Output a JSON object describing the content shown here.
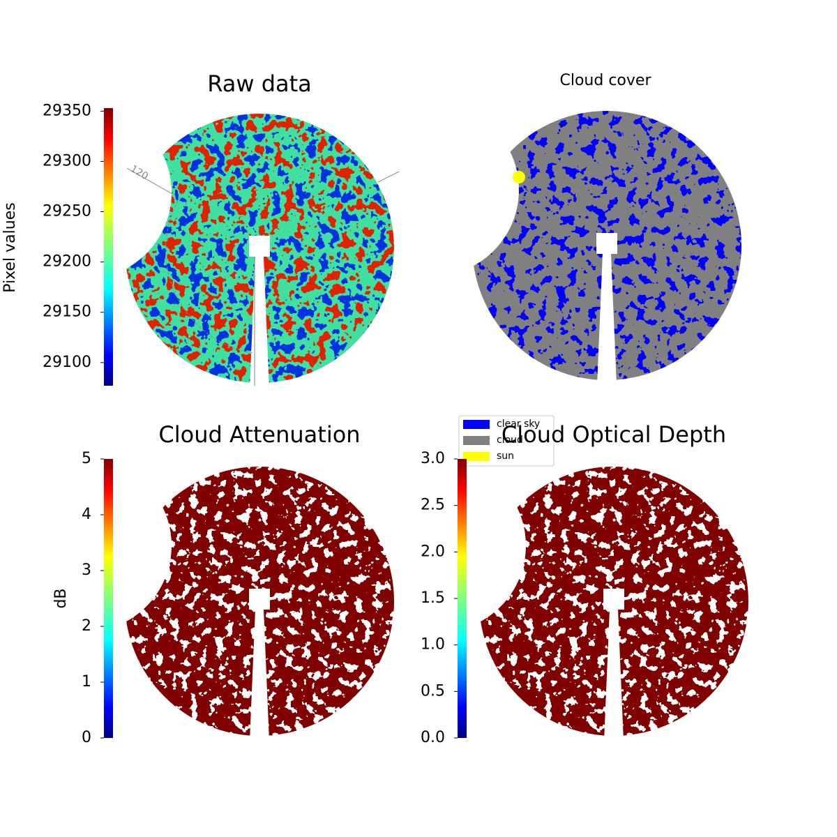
{
  "chart_data": [
    {
      "type": "image",
      "title": "Raw data",
      "colorbar_label": "Pixel values",
      "colormap": "jet",
      "ylim": [
        29077,
        29353
      ],
      "yticks": [
        29100,
        29150,
        29200,
        29250,
        29300,
        29350
      ],
      "annotations": [
        "120"
      ]
    },
    {
      "type": "classification",
      "title": "Cloud cover",
      "classes": [
        {
          "name": "clear sky",
          "color": "#0000ff"
        },
        {
          "name": "cloud",
          "color": "#808080"
        },
        {
          "name": "sun",
          "color": "#ffff00"
        }
      ]
    },
    {
      "type": "image",
      "title": "Cloud Attenuation",
      "colorbar_label": "dB",
      "colormap": "jet",
      "ylim": [
        0,
        5
      ],
      "yticks": [
        0,
        1,
        2,
        3,
        4,
        5
      ]
    },
    {
      "type": "image",
      "title": "Cloud Optical Depth",
      "colormap": "jet",
      "ylim": [
        0,
        3
      ],
      "yticks": [
        {
          "value": 0,
          "label": "0.0"
        },
        0.5,
        {
          "value": 1,
          "label": "1.0"
        },
        1.5,
        {
          "value": 2,
          "label": "2.0"
        },
        2.5,
        {
          "value": 3,
          "label": "3.0"
        }
      ]
    }
  ]
}
